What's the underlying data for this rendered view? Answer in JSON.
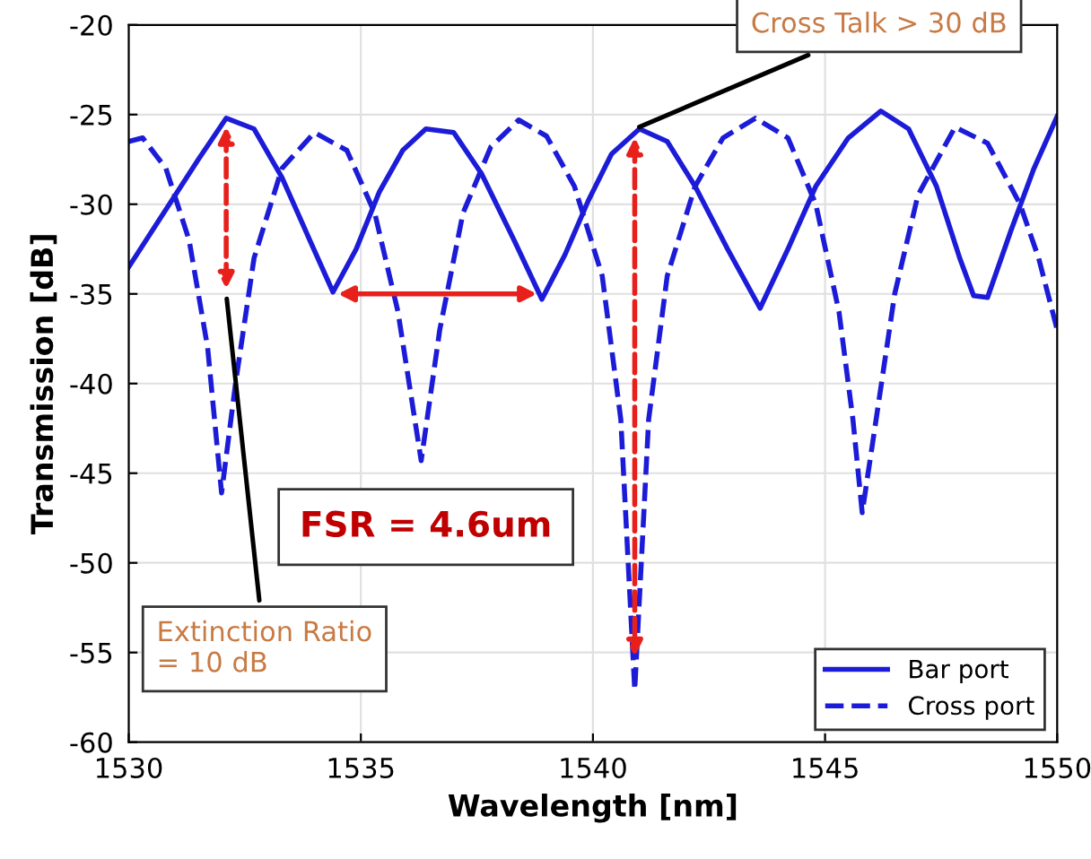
{
  "chart_data": {
    "type": "line",
    "xlabel": "Wavelength [nm]",
    "ylabel": "Transmission [dB]",
    "xlim": [
      1530,
      1550
    ],
    "ylim": [
      -60,
      -20
    ],
    "xticks": [
      1530,
      1535,
      1540,
      1545,
      1550
    ],
    "yticks": [
      -60,
      -55,
      -50,
      -45,
      -40,
      -35,
      -30,
      -25,
      -20
    ],
    "grid": true,
    "legend": "bottom right",
    "series": [
      {
        "name": "Bar port",
        "color": "#1c1cd8",
        "line_style": "solid",
        "x": [
          1530,
          1530.5,
          1531,
          1531.5,
          1532.1,
          1532.7,
          1533.3,
          1533.9,
          1534.4,
          1534.9,
          1535.4,
          1535.9,
          1536.4,
          1537,
          1537.6,
          1538.3,
          1538.9,
          1539.4,
          1539.9,
          1540.4,
          1541,
          1541.6,
          1542.2,
          1542.9,
          1543.6,
          1544.2,
          1544.8,
          1545.5,
          1546.2,
          1546.8,
          1547.4,
          1547.9,
          1548.2,
          1548.5,
          1549,
          1549.5,
          1550
        ],
        "values": [
          -33.5,
          -31.5,
          -29.5,
          -27.5,
          -25.2,
          -25.8,
          -28.5,
          -32,
          -34.9,
          -32.5,
          -29.3,
          -27,
          -25.8,
          -26,
          -28.3,
          -32,
          -35.3,
          -32.8,
          -29.8,
          -27.2,
          -25.8,
          -26.5,
          -29,
          -32.5,
          -35.8,
          -32.5,
          -29,
          -26.3,
          -24.8,
          -25.8,
          -29,
          -33,
          -35.1,
          -35.2,
          -31.5,
          -28,
          -25.1
        ]
      },
      {
        "name": "Cross port",
        "color": "#1c1cd8",
        "line_style": "dashed",
        "x": [
          1530,
          1530.3,
          1530.8,
          1531.3,
          1531.7,
          1532,
          1532.3,
          1532.7,
          1533.3,
          1534,
          1534.7,
          1535.3,
          1535.8,
          1536.3,
          1536.7,
          1537.2,
          1537.8,
          1538.4,
          1539,
          1539.6,
          1540.2,
          1540.6,
          1540.9,
          1541.2,
          1541.6,
          1542.2,
          1542.8,
          1543.5,
          1544.2,
          1544.8,
          1545.3,
          1545.6,
          1545.8,
          1546.1,
          1546.5,
          1547,
          1547.8,
          1548.5,
          1549.2,
          1549.6,
          1550
        ],
        "values": [
          -26.5,
          -26.3,
          -28,
          -32,
          -38,
          -46.1,
          -40,
          -33,
          -28,
          -26,
          -27,
          -30.5,
          -36,
          -44.3,
          -37,
          -30.5,
          -26.8,
          -25.3,
          -26.2,
          -29,
          -34,
          -42,
          -57.1,
          -42,
          -34,
          -29,
          -26.3,
          -25.2,
          -26.3,
          -30,
          -36,
          -42,
          -47.2,
          -42,
          -35,
          -29.5,
          -25.7,
          -26.6,
          -30,
          -33,
          -37
        ]
      }
    ],
    "annotations": [
      "Extinction Ratio\n= 10 dB",
      {
        "text": "Cross Talk > 30 dB",
        "x": 1540.9,
        "y": -25.8
      },
      "FSR = 4.6um"
    ]
  }
}
